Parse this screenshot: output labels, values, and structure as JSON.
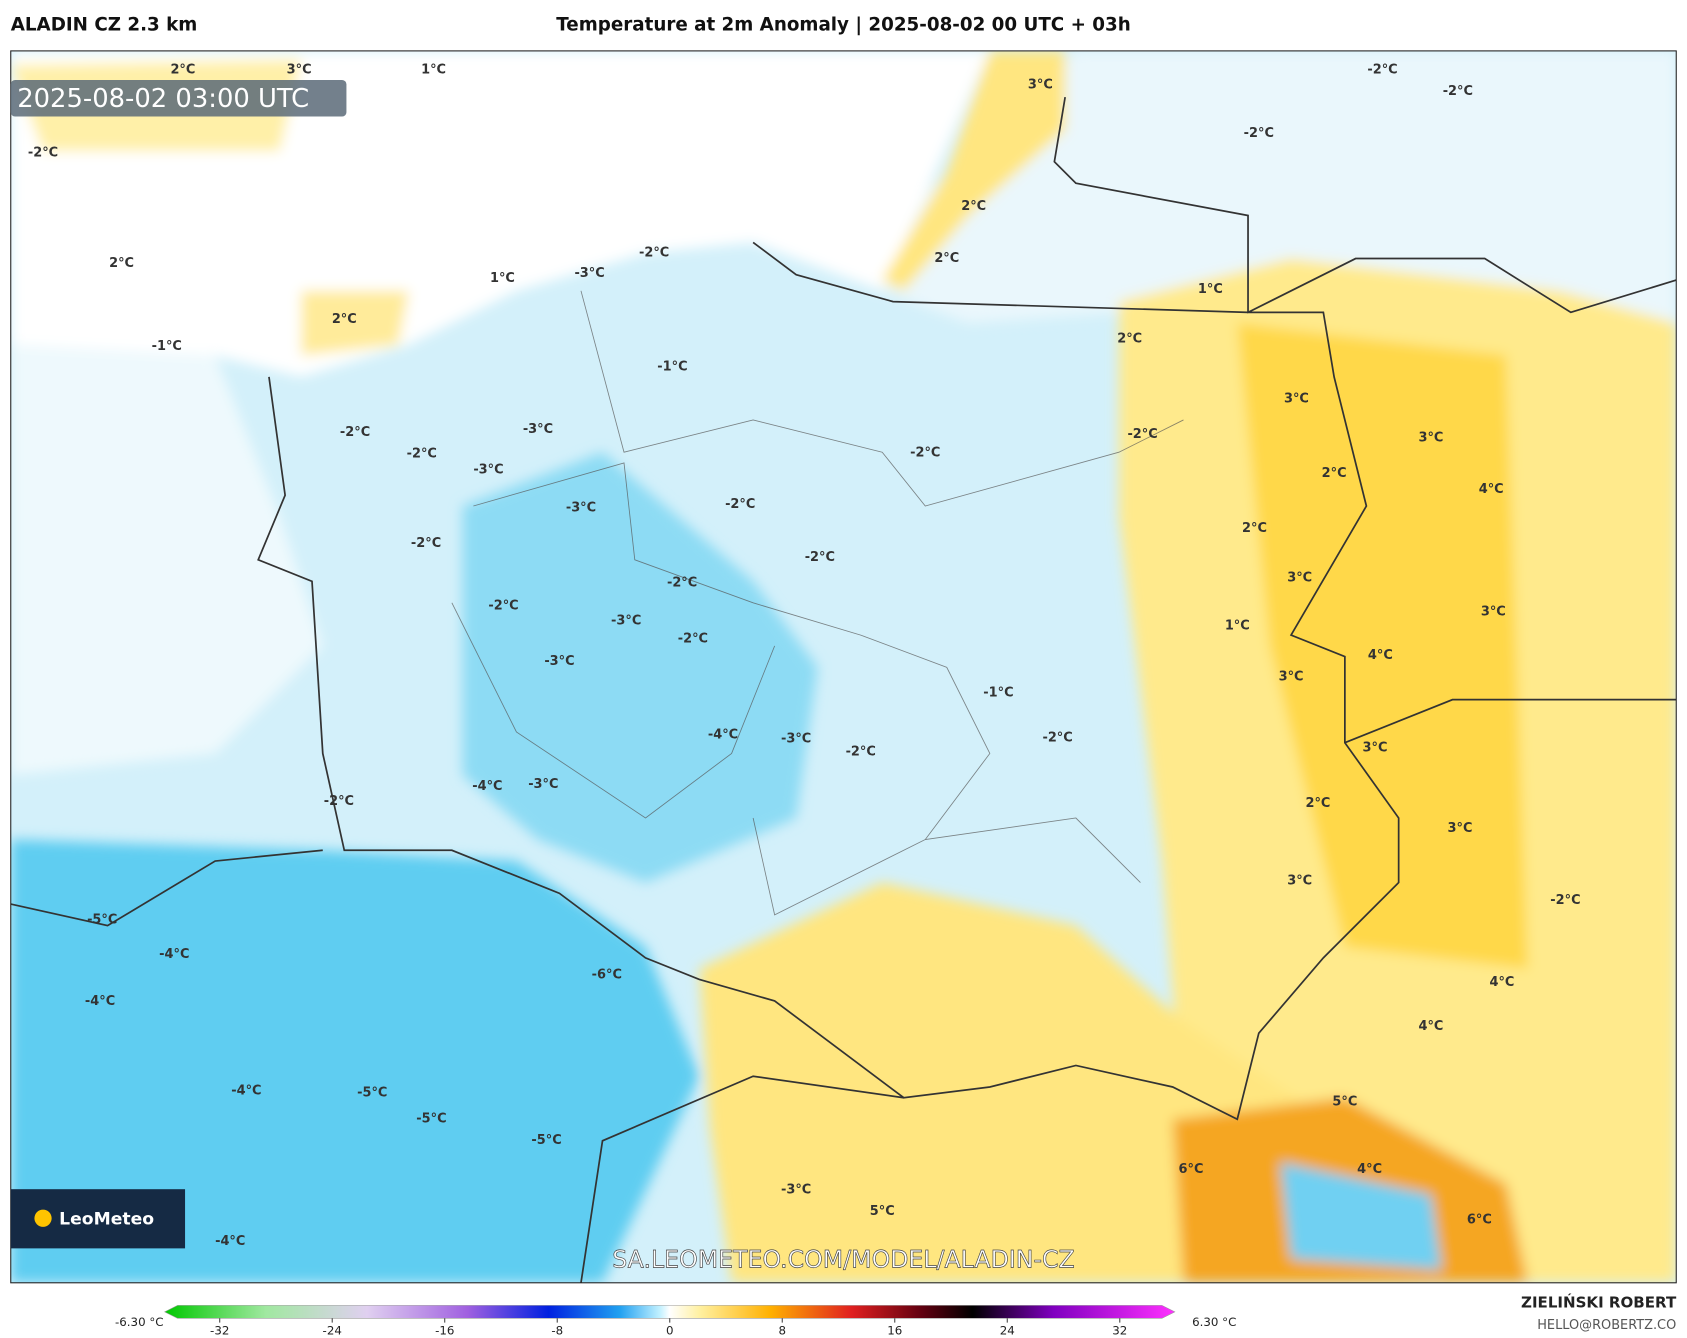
{
  "header": {
    "left_title": "ALADIN CZ 2.3 km",
    "title": "Temperature at 2m Anomaly | 2025-08-02 00 UTC + 03h"
  },
  "map": {
    "timestamp": "2025-08-02 03:00 UTC",
    "watermark": "SA.LEOMETEO.COM/MODEL/ALADIN-CZ",
    "logo": "LeoMeteo",
    "labels": [
      "2°C",
      "3°C",
      "1°C",
      "-2°C",
      "-2°C",
      "-2°C",
      "-3°C",
      "-2°C",
      "2°C",
      "2°C",
      "-1°C",
      "-2°C",
      "-3°C",
      "-2°C",
      "-1°C",
      "1°C",
      "-2°C",
      "-2°C",
      "-3°C",
      "-2°C",
      "-3°C",
      "-2°C",
      "-2°C",
      "-2°C",
      "-2°C",
      "-3°C",
      "-2°C",
      "-3°C",
      "-2°C",
      "-3°C",
      "-4°C",
      "-4°C",
      "-3°C",
      "-2°C",
      "-1°C",
      "-2°C",
      "2°C",
      "2°C",
      "3°C",
      "2°C",
      "3°C",
      "4°C",
      "3°C",
      "3°C",
      "4°C",
      "3°C",
      "2°C",
      "3°C",
      "3°C",
      "4°C",
      "2°C",
      "3°C",
      "4°C",
      "3°C",
      "-4°C",
      "-5°C",
      "-4°C",
      "-5°C",
      "-6°C",
      "-4°C",
      "-5°C",
      "-5°C",
      "-4°C",
      "-3°C",
      "5°C",
      "6°C",
      "5°C",
      "6°C",
      "4°C",
      "-2°C",
      "-2°C",
      "1°C",
      "2°C",
      "1°C"
    ]
  },
  "colorbar": {
    "min_label": "-6.30 °C",
    "max_label": "6.30 °C",
    "lim": [
      -35,
      35
    ],
    "ticks": [
      -32,
      -24,
      -16,
      -8,
      0,
      8,
      16,
      24,
      32
    ]
  },
  "footer": {
    "author": "ZIELIŃSKI ROBERT",
    "email": "HELLO@ROBERTZ.CO"
  }
}
